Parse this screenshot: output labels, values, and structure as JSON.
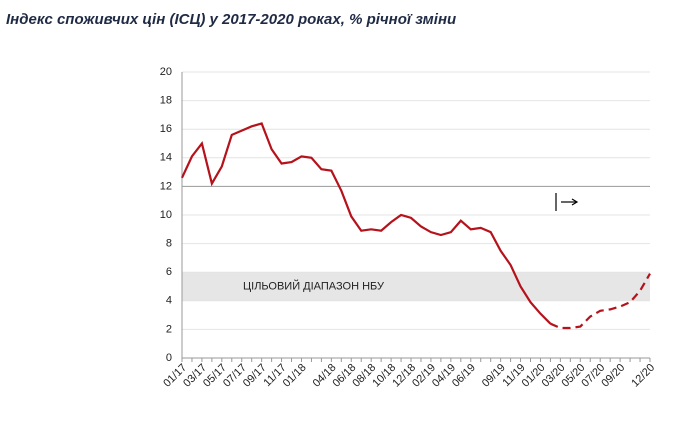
{
  "chart_data": {
    "type": "line",
    "title": "Індекс споживчих цін (ІСЦ) у 2017-2020 роках, % річної зміни",
    "categories": [
      "01/17",
      null,
      "03/17",
      null,
      "05/17",
      null,
      "07/17",
      null,
      "09/17",
      null,
      "11/17",
      null,
      "01/18",
      null,
      null,
      "04/18",
      null,
      "06/18",
      null,
      "08/18",
      null,
      "10/18",
      null,
      "12/18",
      null,
      "02/19",
      null,
      "04/19",
      null,
      "06/19",
      null,
      null,
      "09/19",
      null,
      "11/19",
      null,
      "01/20",
      null,
      "03/20",
      null,
      "05/20",
      null,
      "07/20",
      null,
      "09/20",
      null,
      null,
      "12/20"
    ],
    "series": [
      {
        "color": "#b5121b",
        "dashed": false,
        "values": [
          12.6,
          14.1,
          15.0,
          12.2,
          13.4,
          15.6,
          15.9,
          16.2,
          16.4,
          14.6,
          13.6,
          13.7,
          14.1,
          14.0,
          13.2,
          13.1,
          11.7,
          9.9,
          8.9,
          9.0,
          8.9,
          9.5,
          10.0,
          9.8,
          9.2,
          8.8,
          8.6,
          8.8,
          9.6,
          9.0,
          9.1,
          8.8,
          7.5,
          6.5,
          5.0,
          3.9,
          3.1,
          2.4,
          null,
          null,
          null,
          null,
          null,
          null,
          null,
          null,
          null,
          null
        ]
      },
      {
        "color": "#b5121b",
        "dashed": true,
        "values": [
          null,
          null,
          null,
          null,
          null,
          null,
          null,
          null,
          null,
          null,
          null,
          null,
          null,
          null,
          null,
          null,
          null,
          null,
          null,
          null,
          null,
          null,
          null,
          null,
          null,
          null,
          null,
          null,
          null,
          null,
          null,
          null,
          null,
          null,
          null,
          null,
          null,
          2.4,
          2.1,
          2.1,
          2.2,
          2.9,
          3.3,
          3.4,
          3.6,
          3.9,
          4.7,
          5.9
        ]
      }
    ],
    "target_band": {
      "range": [
        4,
        6
      ],
      "label": "ЦІЛЬОВИЙ ДІАПАЗОН НБУ",
      "color": "#e6e6e6"
    },
    "ylim": [
      0,
      20
    ],
    "yticks": [
      0,
      2,
      4,
      6,
      8,
      10,
      12,
      14,
      16,
      18,
      20
    ],
    "grid": true
  }
}
